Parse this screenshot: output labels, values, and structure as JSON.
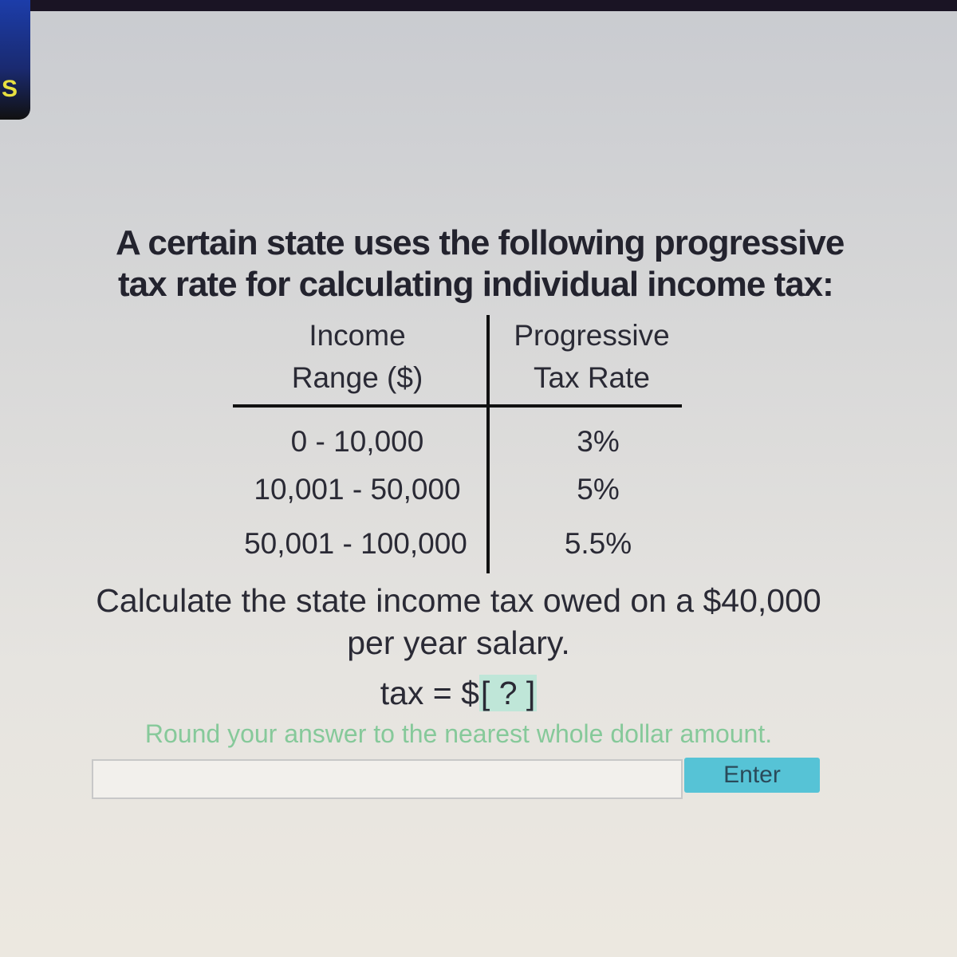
{
  "badge": {
    "letter": "S"
  },
  "question": {
    "intro_line1": "A certain state uses the following progressive",
    "intro_line2": "tax rate for calculating individual income tax:",
    "table": {
      "headers": [
        {
          "line1": "Income",
          "line2": "Range ($)"
        },
        {
          "line1": "Progressive",
          "line2": "Tax Rate"
        }
      ],
      "rows": [
        {
          "range": "0 - 10,000",
          "rate": "3%"
        },
        {
          "range": "10,001 - 50,000",
          "rate": "5%"
        },
        {
          "range": "50,001 - 100,000",
          "rate": "5.5%"
        }
      ]
    },
    "prompt_line1": "Calculate the state income tax owed on a $40,000",
    "prompt_line2": "per year salary.",
    "equation_prefix": "tax = $",
    "answer_placeholder": "[ ? ]",
    "hint": "Round your answer to the nearest whole dollar amount."
  },
  "answer_input": {
    "value": ""
  },
  "enter_button": {
    "label": "Enter"
  },
  "colors": {
    "hint": "#86c99a",
    "button": "#56c3d6",
    "answer_highlight": "#bfe6d8"
  }
}
